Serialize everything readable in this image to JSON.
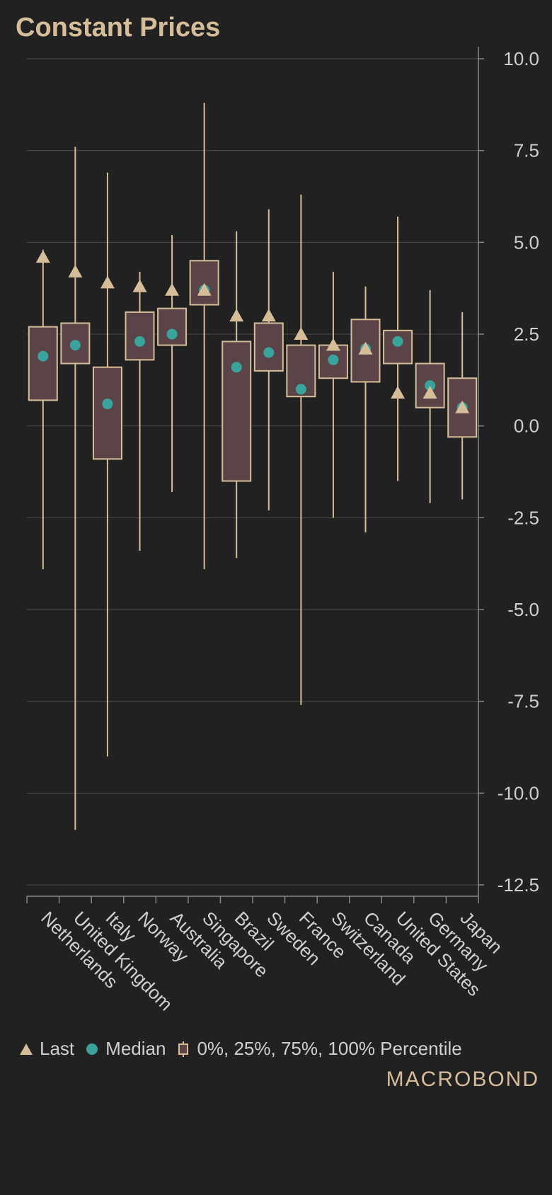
{
  "chart_data": {
    "type": "box",
    "title": "Constant Prices",
    "ylim": [
      -12.5,
      10.0
    ],
    "y_ticks": [
      "10.0",
      "7.5",
      "5.0",
      "2.5",
      "0.0",
      "-2.5",
      "-5.0",
      "-7.5",
      "-10.0",
      "-12.5"
    ],
    "y_tick_values": [
      10.0,
      7.5,
      5.0,
      2.5,
      0.0,
      -2.5,
      -5.0,
      -7.5,
      -10.0,
      -12.5
    ],
    "grid": true,
    "categories": [
      "Netherlands",
      "United Kingdom",
      "Italy",
      "Norway",
      "Australia",
      "Singapore",
      "Brazil",
      "Sweden",
      "France",
      "Switzerland",
      "Canada",
      "United States",
      "Germany",
      "Japan"
    ],
    "series": [
      {
        "name": "0%, 25%, 75%, 100% Percentile",
        "min": [
          -3.9,
          -11.0,
          -9.0,
          -3.4,
          -1.8,
          -3.9,
          -3.6,
          -2.3,
          -7.6,
          -2.5,
          -2.9,
          -1.5,
          -2.1,
          -2.0
        ],
        "q1": [
          0.7,
          1.7,
          -0.9,
          1.8,
          2.2,
          3.3,
          -1.5,
          1.5,
          0.8,
          1.3,
          1.2,
          1.7,
          0.5,
          -0.3
        ],
        "q3": [
          2.7,
          2.8,
          1.6,
          3.1,
          3.2,
          4.5,
          2.3,
          2.8,
          2.2,
          2.2,
          2.9,
          2.6,
          1.7,
          1.3
        ],
        "max": [
          4.8,
          7.6,
          6.9,
          4.2,
          5.2,
          8.8,
          5.3,
          5.9,
          6.3,
          4.2,
          3.8,
          5.7,
          3.7,
          3.1
        ]
      },
      {
        "name": "Median",
        "values": [
          1.9,
          2.2,
          0.6,
          2.3,
          2.5,
          3.7,
          1.6,
          2.0,
          1.0,
          1.8,
          2.1,
          2.3,
          1.1,
          0.5
        ]
      },
      {
        "name": "Last",
        "values": [
          4.6,
          4.2,
          3.9,
          3.8,
          3.7,
          3.7,
          3.0,
          3.0,
          2.5,
          2.2,
          2.1,
          0.9,
          0.9,
          0.5
        ]
      }
    ],
    "legend": [
      {
        "label": "Last",
        "symbol": "triangle"
      },
      {
        "label": "Median",
        "symbol": "circle"
      },
      {
        "label": "0%, 25%, 75%, 100% Percentile",
        "symbol": "box"
      }
    ],
    "legend_position": "bottom",
    "colors": {
      "background": "#212121",
      "box_fill": "#5b4448",
      "box_stroke": "#d6bd9a",
      "whisker": "#d6bd9a",
      "median": "#3aa39b",
      "last": "#d6bd9a",
      "grid": "#4a4a4a",
      "title": "#d6bd9a"
    }
  },
  "brand": {
    "logo_text": "MACROBOND"
  }
}
